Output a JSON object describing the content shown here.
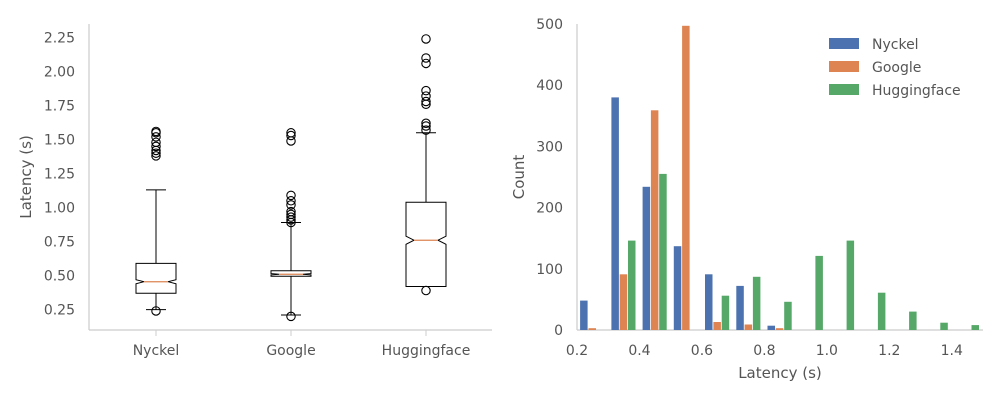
{
  "chart_data": [
    {
      "type": "box",
      "ylabel": "Latency (s)",
      "ylim": [
        0.1,
        2.35
      ],
      "yticks": [
        0.25,
        0.5,
        0.75,
        1.0,
        1.25,
        1.5,
        1.75,
        2.0,
        2.25
      ],
      "ytick_labels": [
        "0.25",
        "0.50",
        "0.75",
        "1.00",
        "1.25",
        "1.50",
        "1.75",
        "2.00",
        "2.25"
      ],
      "notched": true,
      "categories": [
        "Nyckel",
        "Google",
        "Huggingface"
      ],
      "boxes": [
        {
          "name": "Nyckel",
          "whisker_low": 0.25,
          "q1": 0.37,
          "median": 0.455,
          "notch_low": 0.44,
          "notch_high": 0.47,
          "q3": 0.59,
          "whisker_high": 1.13,
          "outliers": [
            0.24,
            1.38,
            1.4,
            1.42,
            1.45,
            1.48,
            1.52,
            1.55,
            1.56
          ]
        },
        {
          "name": "Google",
          "whisker_low": 0.21,
          "q1": 0.495,
          "median": 0.51,
          "notch_low": 0.505,
          "notch_high": 0.515,
          "q3": 0.535,
          "whisker_high": 0.89,
          "outliers": [
            0.2,
            0.89,
            0.91,
            0.93,
            0.95,
            0.97,
            1.02,
            1.05,
            1.09,
            1.49,
            1.53,
            1.55
          ]
        },
        {
          "name": "Huggingface",
          "whisker_low": 0.42,
          "q1": 0.42,
          "median": 0.76,
          "notch_low": 0.73,
          "notch_high": 0.79,
          "q3": 1.04,
          "whisker_high": 1.55,
          "outliers": [
            0.39,
            1.57,
            1.6,
            1.62,
            1.76,
            1.78,
            1.82,
            1.86,
            2.06,
            2.1,
            2.24
          ]
        }
      ],
      "box_color": "#000000",
      "median_color": "#dd8452"
    },
    {
      "type": "bar",
      "xlabel": "Latency (s)",
      "ylabel": "Count",
      "xlim": [
        0.2,
        1.5
      ],
      "ylim": [
        0,
        500
      ],
      "xticks": [
        0.2,
        0.4,
        0.6,
        0.8,
        1.0,
        1.2,
        1.4
      ],
      "xtick_labels": [
        "0.2",
        "0.4",
        "0.6",
        "0.8",
        "1.0",
        "1.2",
        "1.4"
      ],
      "yticks": [
        0,
        100,
        200,
        300,
        400,
        500
      ],
      "ytick_labels": [
        "0",
        "100",
        "200",
        "300",
        "400",
        "500"
      ],
      "legend_position": "top-right",
      "bin_width": 0.1,
      "x": [
        0.25,
        0.35,
        0.45,
        0.55,
        0.65,
        0.75,
        0.85,
        0.95,
        1.05,
        1.15,
        1.25,
        1.35,
        1.45
      ],
      "series": [
        {
          "name": "Nyckel",
          "color": "#4c72b0",
          "values": [
            48,
            380,
            234,
            137,
            91,
            72,
            7,
            0,
            0,
            0,
            0,
            0,
            0
          ]
        },
        {
          "name": "Google",
          "color": "#dd8452",
          "values": [
            3,
            91,
            359,
            497,
            13,
            9,
            3,
            0,
            0,
            0,
            0,
            0,
            0
          ]
        },
        {
          "name": "Huggingface",
          "color": "#55a868",
          "values": [
            0,
            146,
            255,
            0,
            56,
            87,
            46,
            121,
            146,
            61,
            30,
            12,
            8
          ]
        }
      ]
    }
  ]
}
